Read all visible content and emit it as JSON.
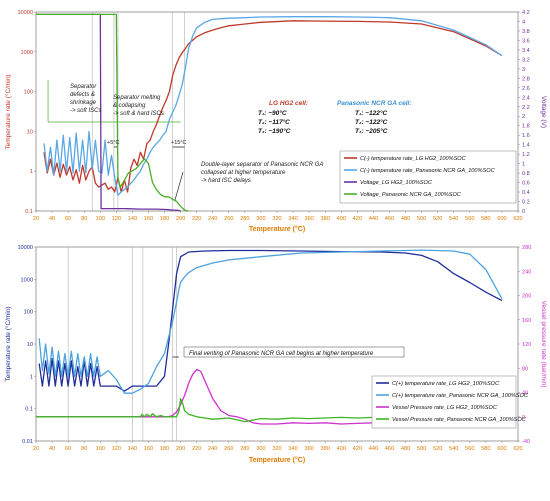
{
  "chart_data": [
    {
      "type": "line",
      "xlabel": "Temperature (°C)",
      "ylabel": "Temperature rate (°C/min)",
      "y2label": "Voltage (V)",
      "xlim": [
        20,
        620
      ],
      "x_ticks": [
        20,
        40,
        60,
        80,
        100,
        120,
        140,
        160,
        180,
        200,
        220,
        240,
        260,
        280,
        300,
        320,
        340,
        360,
        380,
        400,
        420,
        440,
        460,
        480,
        500,
        520,
        540,
        560,
        580,
        600,
        620
      ],
      "y_scale": "log",
      "ylim": [
        0.1,
        10000
      ],
      "y_ticks": [
        {
          "v": 0.1,
          "label": "0.1"
        },
        {
          "v": 1,
          "label": "1"
        },
        {
          "v": 10,
          "label": "10"
        },
        {
          "v": 100,
          "label": "100"
        },
        {
          "v": 1000,
          "label": "1000"
        },
        {
          "v": 10000,
          "label": "10000"
        }
      ],
      "y2lim": [
        0,
        4.2
      ],
      "y2_ticks": [
        "0",
        "0.2",
        "0.4",
        "0.6",
        "0.8",
        "1",
        "1.2",
        "1.4",
        "1.6",
        "1.8",
        "2",
        "2.2",
        "2.4",
        "2.6",
        "2.8",
        "3",
        "3.2",
        "3.4",
        "3.6",
        "3.8",
        "4",
        "4.2"
      ],
      "grid": false,
      "legend_position": "lower-right",
      "annotations": {
        "separator_defects": [
          "Separator",
          "defects &",
          "shrinkage",
          "-> soft ISCs"
        ],
        "separator_melting": [
          "Separator melting",
          "& collapsing",
          "-> soft & hard ISCs"
        ],
        "delta_left": "+5°C",
        "delta_right": "+15°C",
        "double_layer": [
          "Double-layer separator of  Panasonic NCR GA",
          "collapsed at higher temperature",
          "-> hard ISC delays"
        ],
        "lg_heading": "LG HG2 cell:",
        "lg_t1": "T₁: ~90°C",
        "lg_t2": "T₂: ~117°C",
        "lg_t3": "T₃: ~190°C",
        "pan_heading": "Panasonic NCR GA cell:",
        "pan_t1": "T₁: ~122°C",
        "pan_t2": "T₂: ~122°C",
        "pan_t3": "T₃: ~205°C"
      },
      "series": [
        {
          "name": "C(-) temperature rate_LG HG2_100%SOC",
          "color": "#c0392b",
          "axis": "left",
          "x": [
            30,
            34,
            38,
            42,
            46,
            50,
            54,
            58,
            62,
            66,
            70,
            74,
            78,
            82,
            86,
            90,
            94,
            98,
            102,
            106,
            110,
            114,
            118,
            122,
            126,
            130,
            134,
            138,
            142,
            146,
            150,
            154,
            158,
            162,
            166,
            170,
            174,
            178,
            182,
            186,
            190,
            194,
            198,
            202,
            206,
            210,
            220,
            230,
            240,
            250,
            260,
            280,
            300,
            340,
            380,
            420,
            460,
            500,
            540,
            580,
            600
          ],
          "y": [
            3.0,
            0.9,
            2.0,
            0.8,
            1.6,
            0.7,
            1.5,
            0.8,
            1.3,
            0.6,
            1.1,
            0.5,
            1.4,
            0.6,
            1.0,
            1.3,
            0.5,
            0.4,
            0.45,
            0.5,
            0.35,
            0.4,
            0.3,
            0.7,
            0.3,
            0.6,
            0.3,
            1.2,
            2.0,
            1.4,
            3.0,
            2.0,
            5.0,
            6.0,
            10,
            15,
            25,
            40,
            60,
            100,
            250,
            450,
            700,
            950,
            1200,
            1600,
            2400,
            3000,
            3500,
            4000,
            4500,
            5000,
            5500,
            6000,
            5900,
            5800,
            5600,
            5000,
            3200,
            1400,
            800
          ]
        },
        {
          "name": "C(-) temperature rate_Panasonic NCR GA_100%SOC",
          "color": "#5aa7e6",
          "axis": "left",
          "x": [
            30,
            34,
            38,
            42,
            46,
            50,
            54,
            58,
            62,
            66,
            70,
            74,
            78,
            82,
            86,
            90,
            94,
            98,
            102,
            106,
            110,
            114,
            118,
            122,
            126,
            130,
            134,
            138,
            142,
            146,
            150,
            154,
            158,
            162,
            166,
            170,
            174,
            178,
            182,
            186,
            190,
            194,
            198,
            202,
            206,
            210,
            215,
            220,
            230,
            240,
            260,
            280,
            300,
            340,
            380,
            420,
            460,
            500,
            540,
            580,
            600
          ],
          "y": [
            5.0,
            1.0,
            4.0,
            0.8,
            6.0,
            1.0,
            8.0,
            1.0,
            7.0,
            0.9,
            9.0,
            1.0,
            6.0,
            0.9,
            10,
            1.1,
            6.0,
            1.0,
            0.9,
            6.0,
            0.8,
            2.5,
            0.7,
            0.25,
            0.3,
            0.35,
            0.4,
            0.5,
            0.6,
            0.8,
            1.0,
            1.5,
            2.0,
            3.0,
            4.0,
            5.0,
            6.0,
            8.0,
            10,
            20,
            30,
            45,
            80,
            150,
            400,
            1200,
            2500,
            4000,
            5500,
            6500,
            7000,
            7200,
            7500,
            7600,
            7600,
            7500,
            7200,
            6000,
            3500,
            1500,
            800
          ]
        },
        {
          "name": "Voltage_LG HG2_100%SOC",
          "color": "#7030a0",
          "axis": "right",
          "x": [
            20,
            100,
            101,
            110,
            130,
            150,
            170,
            185,
            190,
            195,
            200
          ],
          "y": [
            4.15,
            4.15,
            0.05,
            0.05,
            0.05,
            0.04,
            0.04,
            0.03,
            0.02,
            0.02,
            0.0
          ]
        },
        {
          "name": "Voltage_Panasonic NCR GA_100%SOC",
          "color": "#4caf28",
          "axis": "right",
          "x": [
            20,
            120,
            122,
            125,
            130,
            135,
            140,
            145,
            150,
            155,
            160,
            165,
            170,
            175,
            180,
            185,
            190,
            195,
            200,
            203,
            205,
            210
          ],
          "y": [
            4.15,
            4.15,
            0.7,
            0.5,
            0.65,
            0.8,
            0.85,
            0.9,
            1.0,
            1.1,
            1.0,
            0.6,
            0.45,
            0.35,
            0.3,
            0.3,
            0.25,
            0.2,
            0.1,
            0.05,
            0.02,
            0.0
          ]
        }
      ]
    },
    {
      "type": "line",
      "xlabel": "Temperature (°C)",
      "ylabel": "Temperature rate (°C/min)",
      "y2label": "Vessel pressure rate (bar/min)",
      "xlim": [
        20,
        620
      ],
      "x_ticks": [
        20,
        40,
        60,
        80,
        100,
        120,
        140,
        160,
        180,
        200,
        220,
        240,
        260,
        280,
        300,
        320,
        340,
        360,
        380,
        400,
        420,
        440,
        460,
        480,
        500,
        520,
        540,
        560,
        580,
        600,
        620
      ],
      "y_scale": "log",
      "ylim": [
        0.01,
        10000
      ],
      "y_ticks": [
        {
          "v": 0.01,
          "label": "0.01"
        },
        {
          "v": 0.1,
          "label": "0.1"
        },
        {
          "v": 1,
          "label": "1"
        },
        {
          "v": 10,
          "label": "10"
        },
        {
          "v": 100,
          "label": "100"
        },
        {
          "v": 1000,
          "label": "1000"
        },
        {
          "v": 10000,
          "label": "10000"
        }
      ],
      "y2lim": [
        -40,
        280
      ],
      "y2_ticks": [
        "-40",
        "0",
        "40",
        "80",
        "120",
        "160",
        "200",
        "240",
        "280"
      ],
      "grid": false,
      "legend_position": "lower-right",
      "annotations": {
        "final_venting": "Final venting of Panasonic NCR GA cell begins at higher temperature"
      },
      "series": [
        {
          "name": "C(+) temperature rate_LG HG2_100%SOC",
          "color": "#1f2e9c",
          "axis": "left",
          "x": [
            24,
            28,
            32,
            36,
            40,
            44,
            48,
            52,
            56,
            60,
            64,
            68,
            72,
            76,
            80,
            84,
            88,
            92,
            96,
            100,
            110,
            120,
            130,
            140,
            150,
            160,
            170,
            180,
            185,
            190,
            195,
            200,
            210,
            230,
            260,
            300,
            350,
            400,
            450,
            480,
            500,
            520,
            540,
            560,
            580,
            600
          ],
          "y": [
            2.5,
            0.5,
            3.0,
            0.5,
            3.5,
            0.5,
            3.0,
            0.5,
            2.5,
            0.5,
            3.0,
            0.5,
            2.0,
            0.5,
            3.0,
            0.5,
            2.5,
            0.5,
            2.0,
            0.5,
            0.5,
            0.5,
            0.35,
            0.5,
            0.5,
            0.5,
            0.5,
            1.0,
            10,
            120,
            1500,
            5000,
            7000,
            7500,
            7800,
            7800,
            7500,
            7200,
            7000,
            6500,
            5500,
            3500,
            1500,
            800,
            400,
            220
          ]
        },
        {
          "name": "C(+) temperature rate_Panasonic NCR GA_100%SOC",
          "color": "#4aa3df",
          "axis": "left",
          "x": [
            24,
            28,
            32,
            36,
            40,
            44,
            48,
            52,
            56,
            60,
            64,
            68,
            72,
            76,
            80,
            84,
            88,
            92,
            96,
            100,
            110,
            120,
            130,
            140,
            150,
            160,
            170,
            180,
            190,
            195,
            198,
            200,
            205,
            210,
            220,
            240,
            260,
            300,
            350,
            400,
            450,
            500,
            540,
            560,
            580,
            600
          ],
          "y": [
            15,
            1.5,
            10,
            1.2,
            8,
            1.0,
            6,
            1.0,
            5,
            1.0,
            6,
            1.0,
            5,
            1.0,
            4,
            1.0,
            5,
            1.0,
            4,
            1.0,
            1.5,
            0.8,
            0.3,
            0.3,
            0.4,
            0.6,
            2.0,
            5.0,
            50,
            200,
            500,
            800,
            1200,
            1600,
            2300,
            3200,
            4000,
            5000,
            6500,
            7000,
            7500,
            8000,
            7500,
            6000,
            2000,
            250
          ]
        },
        {
          "name": "Vessel Pressure rate_LG HG2_100%SOC",
          "color": "#cc33cc",
          "axis": "right",
          "x": [
            20,
            180,
            185,
            190,
            195,
            200,
            205,
            210,
            215,
            220,
            225,
            230,
            235,
            240,
            245,
            250,
            260,
            270,
            280,
            290,
            300,
            320,
            340,
            360,
            380,
            400,
            420,
            440,
            460,
            500,
            540,
            560,
            580,
            600
          ],
          "y": [
            0,
            0,
            0,
            2,
            8,
            20,
            35,
            55,
            70,
            78,
            75,
            60,
            45,
            30,
            20,
            10,
            2,
            0,
            -4,
            -10,
            -12,
            -12,
            -10,
            -11,
            -10,
            -12,
            -11,
            -10,
            -8,
            -5,
            -3,
            0,
            0,
            0
          ]
        },
        {
          "name": "Vessel Pressure rate_Panasonic NCR GA_100%SOC",
          "color": "#3cb521",
          "axis": "right",
          "x": [
            20,
            150,
            152,
            155,
            158,
            162,
            165,
            170,
            175,
            180,
            185,
            190,
            195,
            198,
            200,
            203,
            205,
            210,
            215,
            220,
            230,
            240,
            260,
            280,
            300,
            320,
            340,
            360,
            380,
            400,
            420,
            440,
            480,
            520,
            560,
            600
          ],
          "y": [
            0,
            0,
            4,
            0,
            4,
            0,
            5,
            0,
            2,
            0,
            0,
            0,
            0,
            10,
            30,
            20,
            10,
            4,
            2,
            0,
            -2,
            -4,
            -2,
            -8,
            -3,
            -4,
            -2,
            -3,
            -2,
            -1,
            -2,
            -1,
            0,
            0,
            0,
            0
          ]
        }
      ]
    }
  ]
}
